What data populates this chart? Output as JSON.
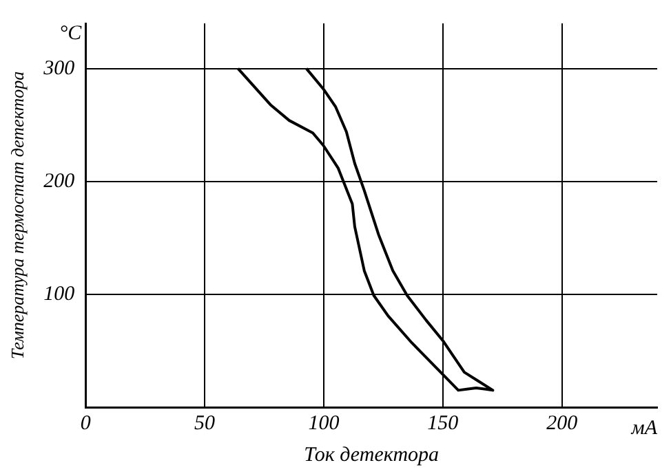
{
  "chart_data": {
    "type": "line",
    "xlabel": "Ток детектора",
    "ylabel": "Температура термостат детектора",
    "annotations": [
      "°C",
      "мА"
    ],
    "series": [
      {
        "color": "#000000",
        "x": [
          64,
          77.6,
          85.5,
          95.4,
          99.8,
          106,
          112,
          113,
          117,
          121,
          127,
          137,
          150,
          156.5,
          160,
          164,
          168,
          171,
          165,
          159,
          150,
          143,
          135,
          129,
          123,
          117,
          113,
          109.5,
          105,
          99.8,
          92.7
        ],
        "values": [
          300,
          268,
          254,
          243,
          232,
          212,
          180,
          160,
          121,
          99,
          81,
          57,
          29,
          15,
          16,
          17,
          16,
          15,
          23,
          31,
          59,
          77,
          99,
          121,
          153,
          192,
          216,
          244,
          266,
          282,
          300
        ]
      }
    ],
    "xlim": [
      0,
      240
    ],
    "xticks": [
      0,
      50,
      100,
      150,
      200
    ],
    "ylim": [
      0,
      340
    ],
    "yticks": [
      100,
      200,
      300
    ],
    "grid": true,
    "legend": false,
    "marker": "none",
    "line_style": "solid"
  }
}
